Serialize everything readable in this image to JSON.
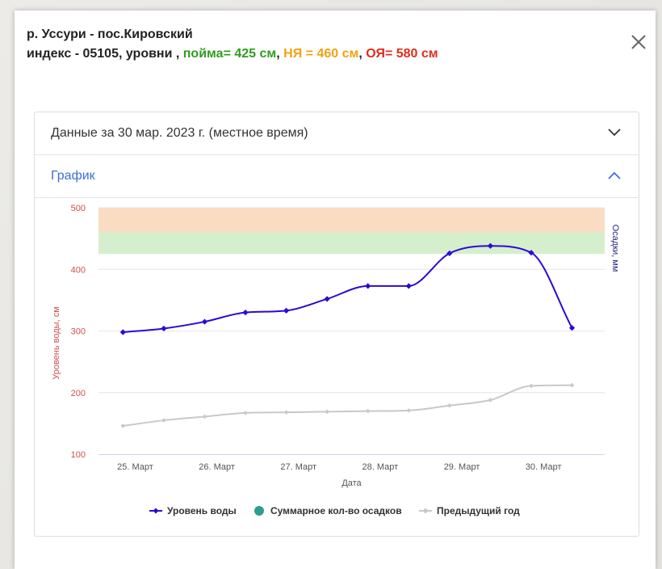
{
  "header": {
    "line1": "р. Уссури - пос.Кировский",
    "line2_prefix": "индекс - 05105, уровни ,",
    "level_floodplain": "пойма= 425 см",
    "level_danger": "НЯ = 460 см",
    "level_critical": "ОЯ= 580 см",
    "sep": ","
  },
  "accordion": {
    "data_section_label": "Данные за 30 мар. 2023 г. (местное время)",
    "chart_section_label": "График"
  },
  "colors": {
    "floodplain": "#2e9d1e",
    "danger": "#f0a310",
    "critical": "#e02c1e",
    "water_level": "#2a0ad8",
    "previous_year": "#c8c8c8",
    "precip": "#2e9e8e",
    "band_orange": "#f9dcc2",
    "band_green": "#d5efcd"
  },
  "chart_data": {
    "type": "line",
    "xlabel": "Дата",
    "ylabel": "Уровень воды, см",
    "ylabel_right": "Осадки, мм",
    "ylim": [
      100,
      500
    ],
    "yticks": [
      100,
      200,
      300,
      400,
      500
    ],
    "xlim": [
      24.55,
      30.75
    ],
    "xticks": [
      {
        "x": 25,
        "label": "25. Март"
      },
      {
        "x": 26,
        "label": "26. Март"
      },
      {
        "x": 27,
        "label": "27. Март"
      },
      {
        "x": 28,
        "label": "28. Март"
      },
      {
        "x": 29,
        "label": "29. Март"
      },
      {
        "x": 30,
        "label": "30. Март"
      }
    ],
    "plot_bands": [
      {
        "from": 460,
        "to": 500,
        "color": "#f9dcc2"
      },
      {
        "from": 425,
        "to": 460,
        "color": "#d5efcd"
      }
    ],
    "series": [
      {
        "name": "Уровень воды",
        "color": "#2a0ad8",
        "points": [
          [
            24.85,
            298
          ],
          [
            25.35,
            304
          ],
          [
            25.85,
            315
          ],
          [
            26.35,
            330
          ],
          [
            26.85,
            333
          ],
          [
            27.35,
            352
          ],
          [
            27.85,
            373
          ],
          [
            28.35,
            373
          ],
          [
            28.85,
            426
          ],
          [
            29.35,
            438
          ],
          [
            29.85,
            427
          ],
          [
            30.35,
            305
          ]
        ]
      },
      {
        "name": "Суммарное кол-во осадков",
        "color": "#2e9e8e",
        "points": []
      },
      {
        "name": "Предыдущий год",
        "color": "#c8c8c8",
        "points": [
          [
            24.85,
            146
          ],
          [
            25.35,
            155
          ],
          [
            25.85,
            161
          ],
          [
            26.35,
            167
          ],
          [
            26.85,
            168
          ],
          [
            27.35,
            169
          ],
          [
            27.85,
            170
          ],
          [
            28.35,
            171
          ],
          [
            28.85,
            179
          ],
          [
            29.35,
            188
          ],
          [
            29.85,
            211
          ],
          [
            30.35,
            212
          ]
        ]
      }
    ]
  }
}
